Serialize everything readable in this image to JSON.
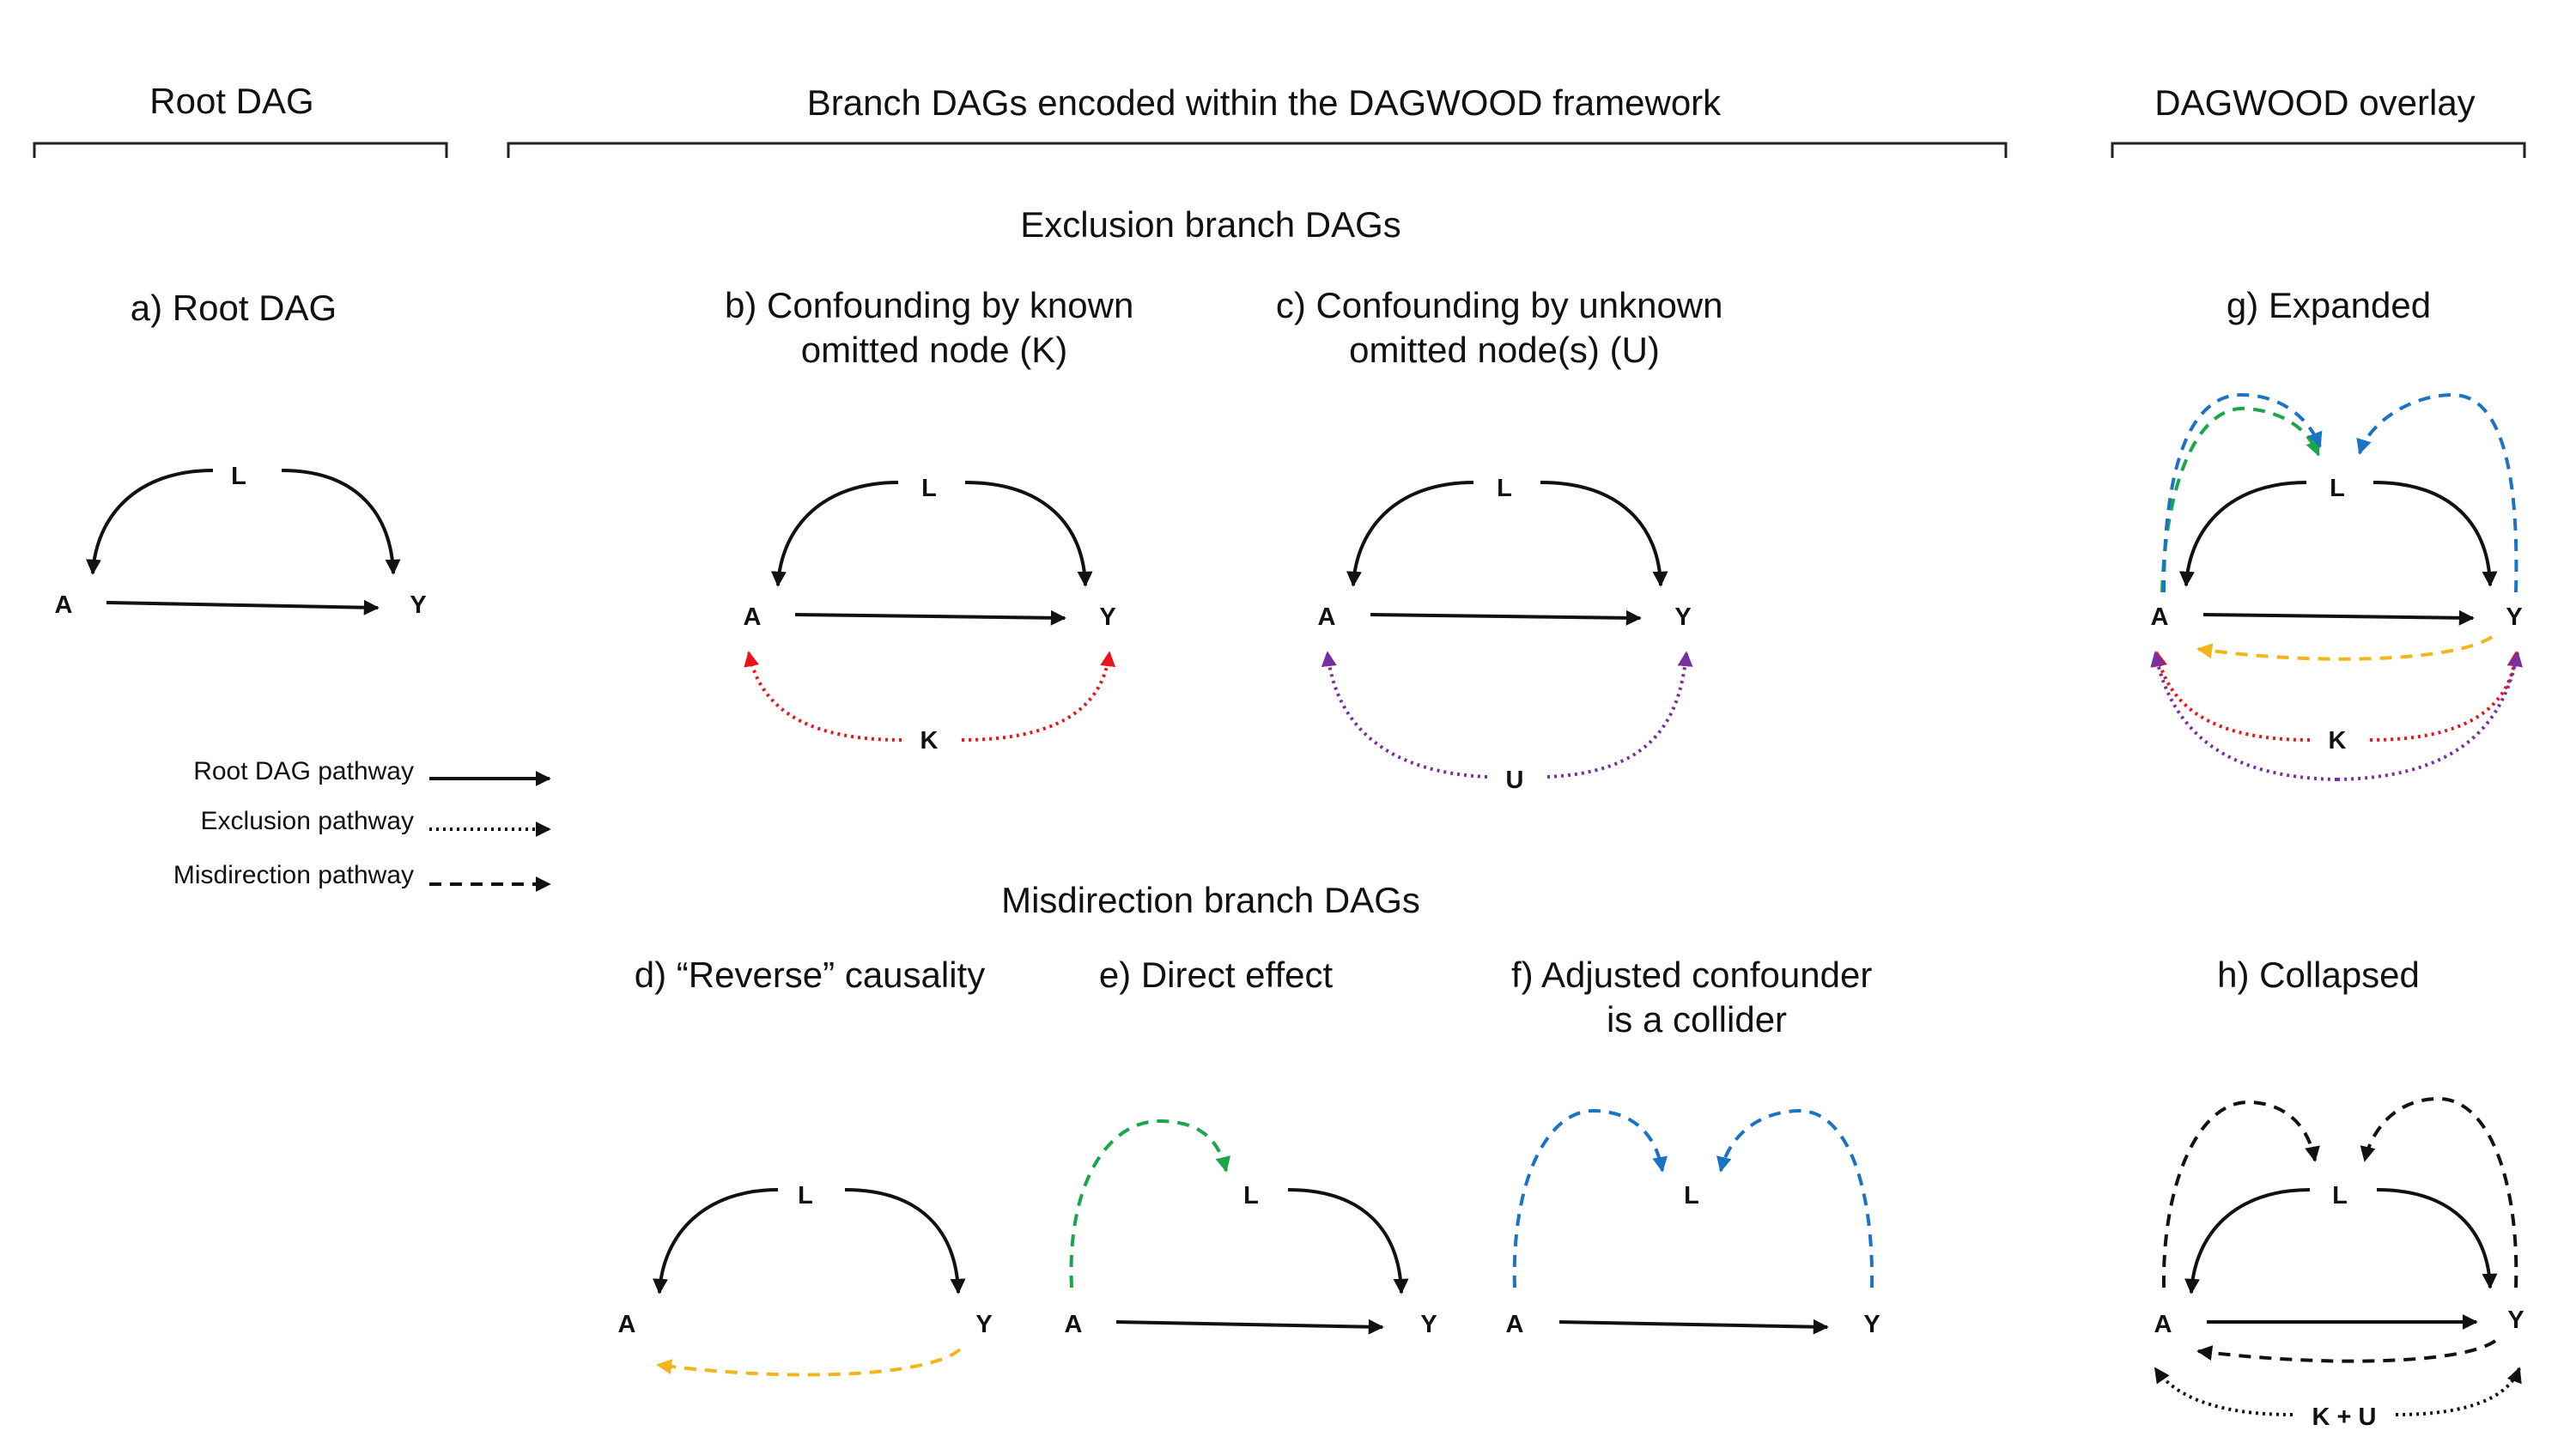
{
  "headers": {
    "root": "Root DAG",
    "branch": "Branch DAGs encoded within the DAGWOOD framework",
    "overlay": "DAGWOOD overlay"
  },
  "sections": {
    "exclusion": "Exclusion branch DAGs",
    "misdirection": "Misdirection branch DAGs"
  },
  "panels": {
    "a": {
      "title_lines": [
        "a) Root DAG"
      ]
    },
    "b": {
      "title_lines": [
        "b) Confounding by known",
        "omitted node (K)"
      ]
    },
    "c": {
      "title_lines": [
        "c) Confounding by unknown",
        "omitted node(s) (U)"
      ]
    },
    "d": {
      "title_lines": [
        "d) “Reverse” causality"
      ]
    },
    "e": {
      "title_lines": [
        "e) Direct effect"
      ]
    },
    "f": {
      "title_lines": [
        "f) Adjusted confounder",
        "is a collider"
      ]
    },
    "g": {
      "title_lines": [
        "g) Expanded"
      ]
    },
    "h": {
      "title_lines": [
        "h) Collapsed"
      ]
    }
  },
  "nodes": {
    "A": "A",
    "Y": "Y",
    "L": "L",
    "K": "K",
    "U": "U",
    "KU": "K + U"
  },
  "legend": {
    "root": "Root DAG pathway",
    "exclusion": "Exclusion pathway",
    "misdirection": "Misdirection pathway"
  },
  "colors": {
    "black": "#111111",
    "red": "#e8141c",
    "purple": "#7a2f9e",
    "yellow": "#f2b51a",
    "green": "#1aa64a",
    "blue": "#1a73c4"
  }
}
